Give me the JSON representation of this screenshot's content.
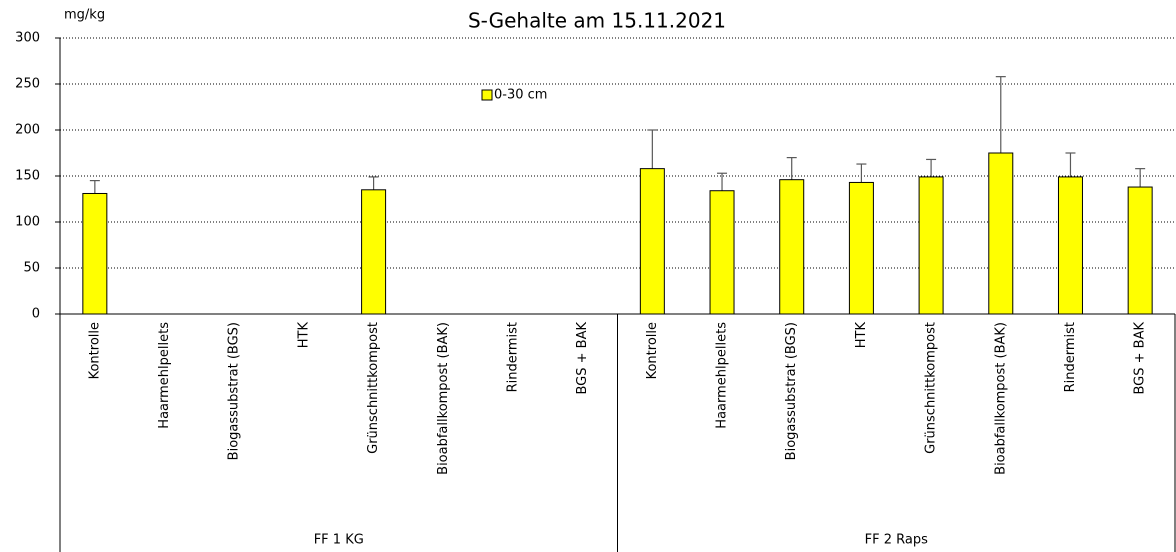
{
  "chart_data": {
    "type": "bar",
    "title": "S-Gehalte am 15.11.2021",
    "y_label": "mg/kg",
    "groups": [
      {
        "label": "FF 1 KG",
        "categories": [
          "Kontrolle",
          "Haarmehlpellets",
          "Biogassubstrat (BGS)",
          "HTK",
          "Grünschnittkompost",
          "Bioabfallkompost (BAK)",
          "Rindermist",
          "BGS + BAK"
        ]
      },
      {
        "label": "FF 2 Raps",
        "categories": [
          "Kontrolle",
          "Haarmehlpellets",
          "Biogassubstrat (BGS)",
          "HTK",
          "Grünschnittkompost",
          "Bioabfallkompost (BAK)",
          "Rindermist",
          "BGS + BAK"
        ]
      }
    ],
    "series": [
      {
        "name": "0-30 cm",
        "color": "#ffff00",
        "values": [
          131,
          null,
          null,
          null,
          135,
          null,
          null,
          null,
          158,
          134,
          146,
          143,
          149,
          175,
          149,
          138
        ],
        "errors": [
          14,
          null,
          null,
          null,
          14,
          null,
          null,
          null,
          42,
          19,
          24,
          20,
          19,
          83,
          26,
          20
        ]
      }
    ],
    "ylim": [
      0,
      300
    ],
    "yticks": [
      0,
      50,
      100,
      150,
      200,
      250,
      300
    ],
    "grid": true
  }
}
